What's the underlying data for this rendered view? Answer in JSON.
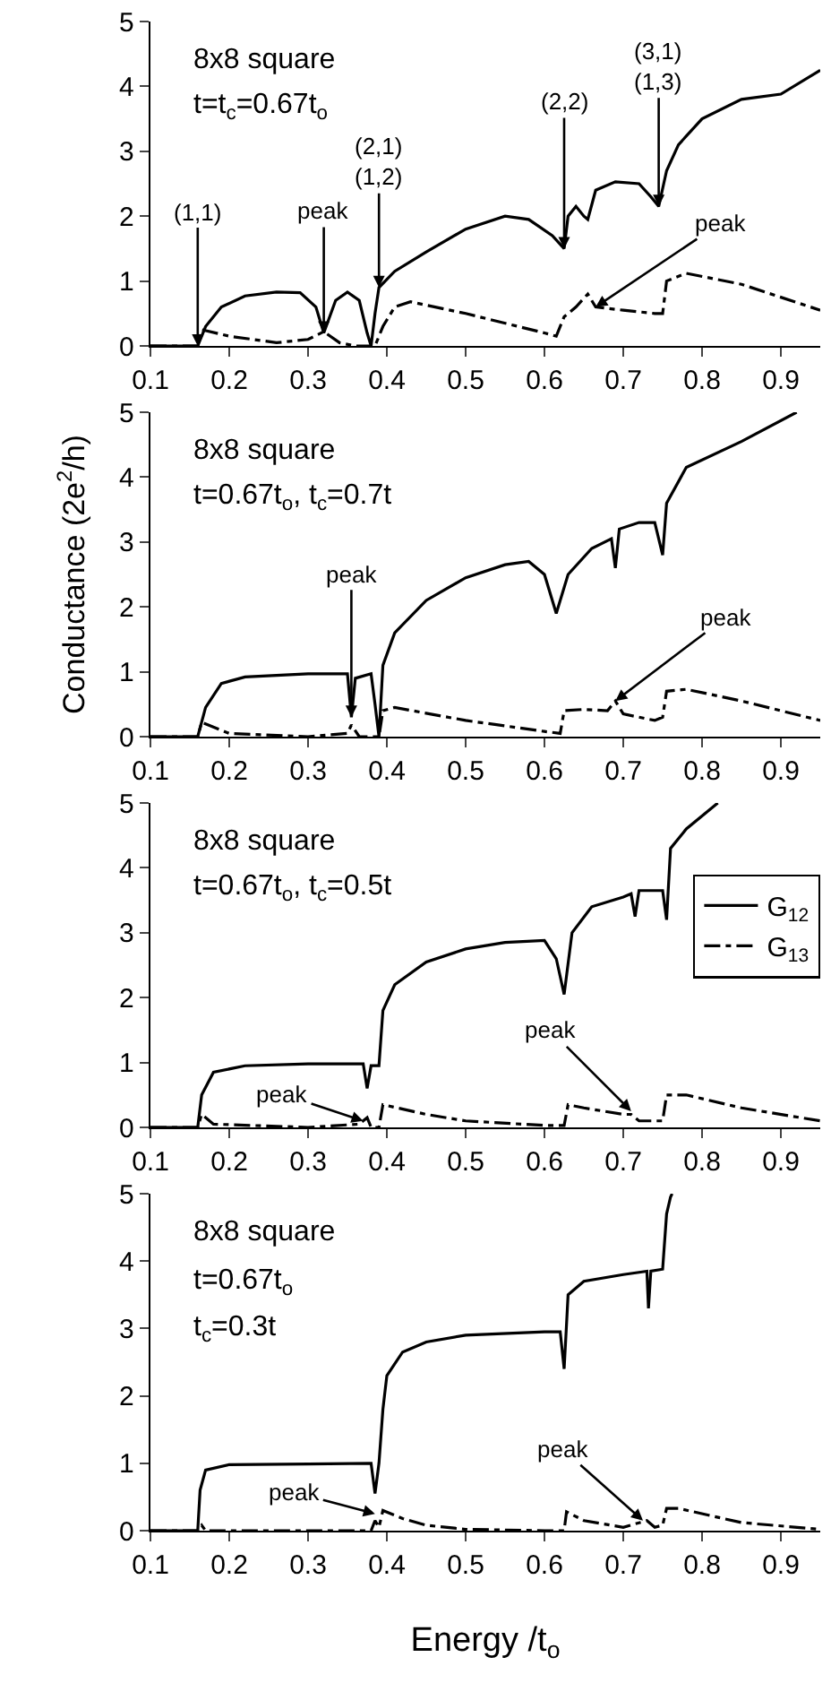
{
  "chart_data": [
    {
      "type": "line",
      "annotations": [
        "8x8 square",
        "t=t$_{c}$=0.67t$_{o}$",
        {
          "text": "(1,1)",
          "x": 0.16,
          "y": 0
        },
        {
          "text": "peak",
          "x": 0.32,
          "y": 0.2
        },
        {
          "text": "(2,1)\n(1,2)",
          "x": 0.39,
          "y": 0.9
        },
        {
          "text": "(2,2)",
          "x": 0.625,
          "y": 1.5
        },
        {
          "text": "(3,1)\n(1,3)",
          "x": 0.745,
          "y": 2.15
        },
        {
          "text": "peak",
          "x": 0.665,
          "y": 0.6
        }
      ],
      "xlim": [
        0.1,
        0.95
      ],
      "xticks": [
        0.1,
        0.2,
        0.3,
        0.4,
        0.5,
        0.6,
        0.7,
        0.8,
        0.9
      ],
      "ylim": [
        0,
        5
      ],
      "yticks": [
        0,
        1,
        2,
        3,
        4,
        5
      ],
      "grid": false,
      "series": [
        {
          "color": "#000000",
          "line_style": "solid",
          "x": [
            0.1,
            0.16,
            0.17,
            0.19,
            0.22,
            0.26,
            0.29,
            0.31,
            0.32,
            0.335,
            0.35,
            0.365,
            0.375,
            0.38,
            0.385,
            0.39,
            0.41,
            0.45,
            0.5,
            0.55,
            0.58,
            0.61,
            0.625,
            0.63,
            0.64,
            0.65,
            0.655,
            0.665,
            0.69,
            0.72,
            0.735,
            0.745,
            0.755,
            0.77,
            0.8,
            0.85,
            0.9,
            0.95
          ],
          "values": [
            0,
            0,
            0.3,
            0.6,
            0.77,
            0.83,
            0.82,
            0.6,
            0.2,
            0.7,
            0.83,
            0.7,
            0.2,
            0,
            0.5,
            0.9,
            1.15,
            1.45,
            1.8,
            2.0,
            1.95,
            1.7,
            1.5,
            2.0,
            2.15,
            2.0,
            1.95,
            2.4,
            2.53,
            2.5,
            2.3,
            2.15,
            2.7,
            3.1,
            3.5,
            3.8,
            3.88,
            4.25
          ]
        },
        {
          "color": "#000000",
          "line_style": "dashed",
          "x": [
            0.1,
            0.16,
            0.165,
            0.2,
            0.26,
            0.3,
            0.32,
            0.34,
            0.36,
            0.385,
            0.395,
            0.41,
            0.43,
            0.5,
            0.6,
            0.615,
            0.625,
            0.64,
            0.655,
            0.665,
            0.7,
            0.74,
            0.75,
            0.755,
            0.78,
            0.85,
            0.95
          ],
          "values": [
            0,
            0,
            0.25,
            0.15,
            0.05,
            0.1,
            0.22,
            0.05,
            0,
            0,
            0.3,
            0.6,
            0.68,
            0.5,
            0.2,
            0.15,
            0.45,
            0.6,
            0.8,
            0.6,
            0.55,
            0.5,
            0.5,
            1.0,
            1.12,
            0.95,
            0.55
          ]
        }
      ]
    },
    {
      "type": "line",
      "ylabel": "Conductance (2e$^{2}$/h)",
      "annotations": [
        "8x8 square",
        "t=0.67t$_{o}$, t$_{c}$=0.7t",
        {
          "text": "peak",
          "x": 0.355,
          "y": 0.3
        },
        {
          "text": "peak",
          "x": 0.69,
          "y": 0.55
        }
      ],
      "xlim": [
        0.1,
        0.95
      ],
      "xticks": [
        0.1,
        0.2,
        0.3,
        0.4,
        0.5,
        0.6,
        0.7,
        0.8,
        0.9
      ],
      "ylim": [
        0,
        5
      ],
      "yticks": [
        0,
        1,
        2,
        3,
        4,
        5
      ],
      "grid": false,
      "series": [
        {
          "color": "#000000",
          "line_style": "solid",
          "x": [
            0.1,
            0.16,
            0.17,
            0.19,
            0.22,
            0.3,
            0.35,
            0.355,
            0.36,
            0.38,
            0.385,
            0.39,
            0.395,
            0.41,
            0.45,
            0.5,
            0.55,
            0.58,
            0.6,
            0.615,
            0.63,
            0.66,
            0.685,
            0.69,
            0.695,
            0.72,
            0.74,
            0.75,
            0.755,
            0.78,
            0.85,
            0.92
          ],
          "values": [
            0,
            0,
            0.45,
            0.82,
            0.92,
            0.97,
            0.97,
            0.3,
            0.9,
            0.97,
            0.5,
            0,
            1.1,
            1.6,
            2.1,
            2.45,
            2.65,
            2.7,
            2.5,
            1.9,
            2.5,
            2.9,
            3.05,
            2.6,
            3.2,
            3.3,
            3.3,
            2.8,
            3.6,
            4.15,
            4.55,
            5.0
          ]
        },
        {
          "color": "#000000",
          "line_style": "dashed",
          "x": [
            0.1,
            0.16,
            0.165,
            0.2,
            0.3,
            0.35,
            0.355,
            0.365,
            0.39,
            0.395,
            0.41,
            0.5,
            0.6,
            0.62,
            0.625,
            0.65,
            0.68,
            0.69,
            0.7,
            0.74,
            0.75,
            0.755,
            0.78,
            0.85,
            0.95
          ],
          "values": [
            0,
            0,
            0.22,
            0.05,
            0,
            0.05,
            0.18,
            0,
            0,
            0.4,
            0.45,
            0.25,
            0.08,
            0.05,
            0.4,
            0.42,
            0.4,
            0.55,
            0.35,
            0.25,
            0.3,
            0.7,
            0.73,
            0.55,
            0.25
          ]
        }
      ]
    },
    {
      "type": "line",
      "annotations": [
        "8x8 square",
        "t=0.67t$_{o}$, t$_{c}$=0.5t",
        {
          "text": "peak",
          "x": 0.37,
          "y": 0.1
        },
        {
          "text": "peak",
          "x": 0.71,
          "y": 0.25
        }
      ],
      "xlim": [
        0.1,
        0.95
      ],
      "xticks": [
        0.1,
        0.2,
        0.3,
        0.4,
        0.5,
        0.6,
        0.7,
        0.8,
        0.9
      ],
      "ylim": [
        0,
        5
      ],
      "yticks": [
        0,
        1,
        2,
        3,
        4,
        5
      ],
      "grid": false,
      "legend": "right",
      "series": [
        {
          "name": "G$_{12}$",
          "color": "#000000",
          "line_style": "solid",
          "x": [
            0.1,
            0.16,
            0.165,
            0.18,
            0.22,
            0.3,
            0.37,
            0.375,
            0.38,
            0.39,
            0.395,
            0.41,
            0.45,
            0.5,
            0.55,
            0.6,
            0.615,
            0.625,
            0.635,
            0.66,
            0.7,
            0.71,
            0.715,
            0.72,
            0.75,
            0.755,
            0.76,
            0.78,
            0.82
          ],
          "values": [
            0,
            0,
            0.5,
            0.85,
            0.95,
            0.98,
            0.98,
            0.6,
            0.95,
            0.95,
            1.8,
            2.2,
            2.55,
            2.75,
            2.85,
            2.88,
            2.6,
            2.05,
            3.0,
            3.4,
            3.55,
            3.6,
            3.25,
            3.65,
            3.65,
            3.2,
            4.3,
            4.6,
            5.0
          ]
        },
        {
          "name": "G$_{13}$",
          "color": "#000000",
          "line_style": "dashed",
          "x": [
            0.1,
            0.16,
            0.165,
            0.18,
            0.3,
            0.365,
            0.375,
            0.38,
            0.39,
            0.395,
            0.45,
            0.5,
            0.6,
            0.625,
            0.63,
            0.65,
            0.7,
            0.71,
            0.72,
            0.75,
            0.755,
            0.78,
            0.85,
            0.95
          ],
          "values": [
            0,
            0,
            0.2,
            0.05,
            0,
            0.05,
            0.15,
            0,
            0,
            0.35,
            0.2,
            0.1,
            0.03,
            0.03,
            0.35,
            0.3,
            0.2,
            0.2,
            0.1,
            0.1,
            0.5,
            0.5,
            0.3,
            0.1
          ]
        }
      ]
    },
    {
      "type": "line",
      "xlabel": "Energy /t$_{o}$",
      "annotations": [
        "8x8 square",
        "t=0.67t$_{o}$",
        "t$_{c}$=0.3t",
        {
          "text": "peak",
          "x": 0.385,
          "y": 0.25
        },
        {
          "text": "peak",
          "x": 0.725,
          "y": 0.15
        }
      ],
      "xlim": [
        0.1,
        0.95
      ],
      "xticks": [
        0.1,
        0.2,
        0.3,
        0.4,
        0.5,
        0.6,
        0.7,
        0.8,
        0.9
      ],
      "ylim": [
        0,
        5
      ],
      "yticks": [
        0,
        1,
        2,
        3,
        4,
        5
      ],
      "grid": false,
      "series": [
        {
          "color": "#000000",
          "line_style": "solid",
          "x": [
            0.1,
            0.16,
            0.163,
            0.17,
            0.2,
            0.3,
            0.38,
            0.385,
            0.39,
            0.395,
            0.4,
            0.42,
            0.45,
            0.5,
            0.6,
            0.62,
            0.625,
            0.63,
            0.65,
            0.7,
            0.73,
            0.732,
            0.735,
            0.75,
            0.755,
            0.76,
            0.762
          ],
          "values": [
            0,
            0,
            0.6,
            0.9,
            0.98,
            0.99,
            1.0,
            0.55,
            1.0,
            1.8,
            2.3,
            2.65,
            2.8,
            2.9,
            2.95,
            2.95,
            2.4,
            3.5,
            3.7,
            3.8,
            3.85,
            3.3,
            3.85,
            3.88,
            4.7,
            4.95,
            5.0
          ]
        },
        {
          "color": "#000000",
          "line_style": "dashed",
          "x": [
            0.1,
            0.16,
            0.165,
            0.17,
            0.38,
            0.385,
            0.39,
            0.395,
            0.42,
            0.45,
            0.5,
            0.6,
            0.625,
            0.628,
            0.65,
            0.7,
            0.73,
            0.74,
            0.75,
            0.755,
            0.77,
            0.85,
            0.95
          ],
          "values": [
            0,
            0,
            0.08,
            0,
            0,
            0.15,
            0.05,
            0.3,
            0.18,
            0.08,
            0.02,
            0,
            0,
            0.28,
            0.15,
            0.05,
            0.15,
            0.05,
            0.08,
            0.33,
            0.33,
            0.12,
            0.02
          ]
        }
      ]
    }
  ]
}
